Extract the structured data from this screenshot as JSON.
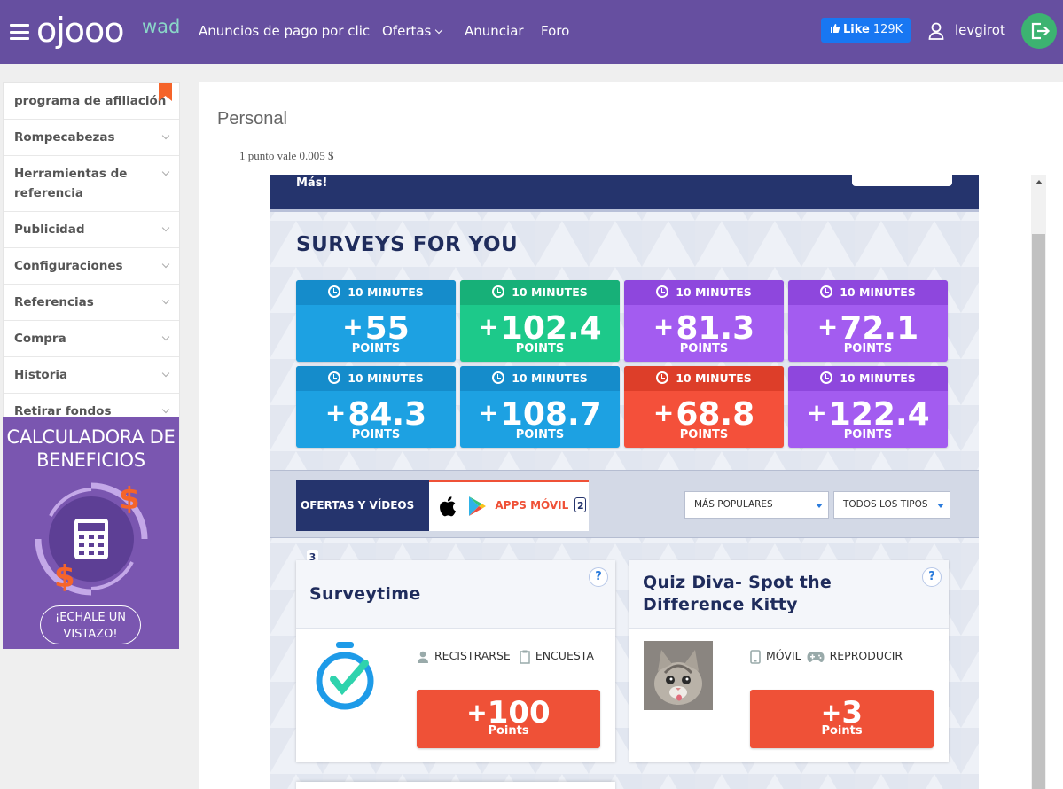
{
  "header": {
    "logo_text": "ojooo",
    "logo_sup": "wad",
    "nav": [
      "Anuncios de pago por clic",
      "Ofertas",
      "Anunciar",
      "Foro"
    ],
    "fb_like_label": "Like",
    "fb_like_count": "129K",
    "username": "levgirot"
  },
  "sidebar": {
    "items": [
      "programa de afiliación",
      "Rompecabezas",
      "Herramientas de referencia",
      "Publicidad",
      "Configuraciones",
      "Referencias",
      "Compra",
      "Historia",
      "Retirar fondos"
    ]
  },
  "calculator": {
    "title": "CALCULADORA DE BENEFICIOS",
    "button": "¡ECHALE UN VISTAZO!"
  },
  "main": {
    "title": "Personal",
    "point_value": "1 punto vale 0.005 $"
  },
  "offerwall": {
    "header_text": "Más!",
    "surveys_title": "SURVEYS FOR YOU",
    "surveys": [
      {
        "duration": "10 MINUTES",
        "points": "55",
        "unit": "POINTS",
        "color": "#1da1e2",
        "top_color": "#158ccb"
      },
      {
        "duration": "10 MINUTES",
        "points": "102.4",
        "unit": "POINTS",
        "color": "#1dc98a",
        "top_color": "#17b078"
      },
      {
        "duration": "10 MINUTES",
        "points": "81.3",
        "unit": "POINTS",
        "color": "#a35cf0",
        "top_color": "#8e47dd"
      },
      {
        "duration": "10 MINUTES",
        "points": "72.1",
        "unit": "POINTS",
        "color": "#a35cf0",
        "top_color": "#8e47dd"
      },
      {
        "duration": "10 MINUTES",
        "points": "84.3",
        "unit": "POINTS",
        "color": "#1da1e2",
        "top_color": "#158ccb"
      },
      {
        "duration": "10 MINUTES",
        "points": "108.7",
        "unit": "POINTS",
        "color": "#1da1e2",
        "top_color": "#158ccb"
      },
      {
        "duration": "10 MINUTES",
        "points": "68.8",
        "unit": "POINTS",
        "color": "#f4503a",
        "top_color": "#dd3e29"
      },
      {
        "duration": "10 MINUTES",
        "points": "122.4",
        "unit": "POINTS",
        "color": "#a35cf0",
        "top_color": "#8e47dd"
      }
    ],
    "tabs": [
      {
        "label": "OFERTAS Y VÍDEOS",
        "count": "3"
      },
      {
        "label": "APPS MÓVIL",
        "count": "2"
      }
    ],
    "sort_select": "MÁS POPULARES",
    "type_select": "TODOS LOS TIPOS",
    "offers": [
      {
        "title": "Surveytime",
        "tag1": "RECISTRARSE",
        "tag2": "ENCUESTA",
        "reward": "100",
        "reward_unit": "Points"
      },
      {
        "title": "Quiz Diva- Spot the Difference Kitty",
        "tag1": "MÓVIL",
        "tag2": "REPRODUCIR",
        "reward": "3",
        "reward_unit": "Points"
      }
    ],
    "help_label": "?"
  },
  "colors": {
    "header_bg": "#664fa0",
    "accent_green": "#3cb371",
    "offer_red": "#ef5137",
    "navy": "#25346d"
  }
}
